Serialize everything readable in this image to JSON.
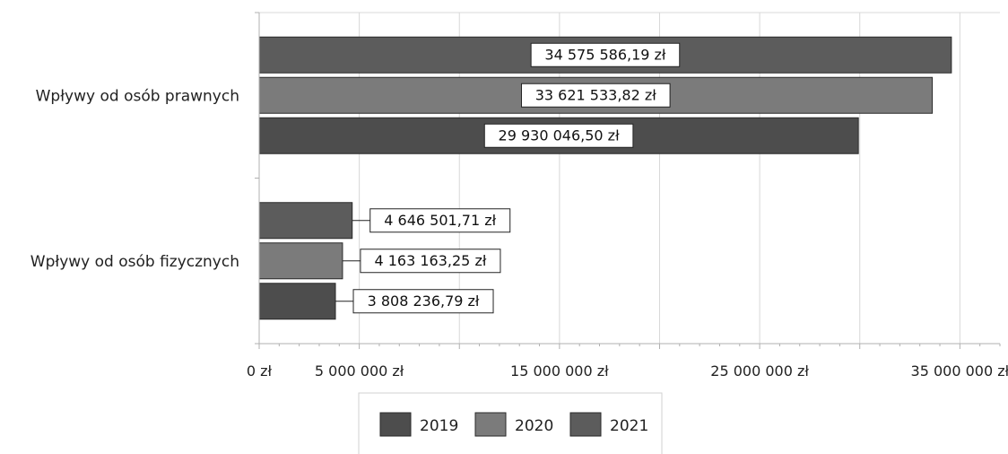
{
  "chart_data": {
    "type": "bar",
    "orientation": "horizontal",
    "categories": [
      "Wpływy od osób prawnych",
      "Wpływy od osób fizycznych"
    ],
    "series": [
      {
        "name": "2021",
        "values": [
          34575586.19,
          4646501.71
        ],
        "labels": [
          "34 575 586,19 zł",
          "4 646 501,71 zł"
        ],
        "color": "#5c5c5c"
      },
      {
        "name": "2020",
        "values": [
          33621533.82,
          4163163.25
        ],
        "labels": [
          "33 621 533,82 zł",
          "4 163 163,25 zł"
        ],
        "color": "#7b7b7b"
      },
      {
        "name": "2019",
        "values": [
          29930046.5,
          3808236.79
        ],
        "labels": [
          "29 930 046,50 zł",
          "3 808 236,79 zł"
        ],
        "color": "#4d4d4d"
      }
    ],
    "xlim": [
      0,
      37000000
    ],
    "x_ticks": [
      {
        "value": 0,
        "label": "0 zł"
      },
      {
        "value": 5000000,
        "label": "5 000 000 zł"
      },
      {
        "value": 15000000,
        "label": "15 000 000 zł"
      },
      {
        "value": 25000000,
        "label": "25 000 000 zł"
      },
      {
        "value": 35000000,
        "label": "35 000 000 zł"
      }
    ],
    "legend": {
      "position": "bottom",
      "order": [
        "2019",
        "2020",
        "2021"
      ]
    },
    "grid": true,
    "title": "",
    "xlabel": "",
    "ylabel": ""
  }
}
